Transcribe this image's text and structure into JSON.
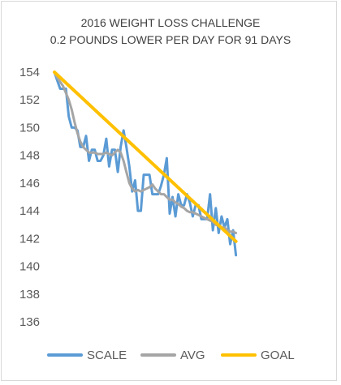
{
  "chart_data": {
    "type": "line",
    "title_lines": [
      "2016 WEIGHT LOSS CHALLENGE",
      "0.2 POUNDS LOWER PER DAY FOR 91 DAYS"
    ],
    "ylim": [
      136,
      154
    ],
    "yticks": [
      136,
      138,
      140,
      142,
      144,
      146,
      148,
      150,
      152,
      154
    ],
    "xlim": [
      0,
      91
    ],
    "grid": false,
    "legend_position": "bottom",
    "series": [
      {
        "name": "SCALE",
        "color": "#5b9bd5",
        "points": [
          [
            0,
            154
          ],
          [
            1,
            153.4
          ],
          [
            2,
            152.8
          ],
          [
            3,
            152.8
          ],
          [
            4,
            152.8
          ],
          [
            5,
            150.8
          ],
          [
            6,
            150
          ],
          [
            7,
            150
          ],
          [
            8,
            149.8
          ],
          [
            9,
            148.6
          ],
          [
            10,
            148.6
          ],
          [
            11,
            149.4
          ],
          [
            12,
            147.6
          ],
          [
            13,
            148.4
          ],
          [
            14,
            148.4
          ],
          [
            15,
            147.6
          ],
          [
            16,
            147.6
          ],
          [
            17,
            148
          ],
          [
            18,
            149.2
          ],
          [
            19,
            147.2
          ],
          [
            20,
            148.4
          ],
          [
            21,
            148.4
          ],
          [
            22,
            146.8
          ],
          [
            23,
            148.6
          ],
          [
            24,
            149.8
          ],
          [
            25,
            148.6
          ],
          [
            26,
            147.2
          ],
          [
            27,
            145.4
          ],
          [
            28,
            146.2
          ],
          [
            29,
            144
          ],
          [
            30,
            144
          ],
          [
            31,
            146.6
          ],
          [
            32,
            146.6
          ],
          [
            33,
            146.6
          ],
          [
            34,
            145.2
          ],
          [
            35,
            145.2
          ],
          [
            36,
            145.2
          ],
          [
            37,
            145.8
          ],
          [
            38,
            146.6
          ],
          [
            39,
            147.8
          ],
          [
            40,
            143.8
          ],
          [
            41,
            145
          ],
          [
            42,
            143.6
          ],
          [
            43,
            145.2
          ],
          [
            44,
            144.4
          ],
          [
            45,
            144.4
          ],
          [
            46,
            145.2
          ],
          [
            47,
            144.6
          ],
          [
            48,
            143.6
          ],
          [
            49,
            144.4
          ],
          [
            50,
            144.4
          ],
          [
            51,
            143.4
          ],
          [
            52,
            143.4
          ],
          [
            53,
            143.4
          ],
          [
            54,
            145.2
          ],
          [
            55,
            142.6
          ],
          [
            56,
            144.2
          ],
          [
            57,
            142.4
          ],
          [
            58,
            143.6
          ],
          [
            59,
            142.8
          ],
          [
            60,
            143.4
          ],
          [
            61,
            141.6
          ],
          [
            62,
            142.6
          ],
          [
            63,
            140.8
          ]
        ]
      },
      {
        "name": "AVG",
        "color": "#a5a5a5",
        "points": [
          [
            0,
            154
          ],
          [
            1,
            153.6
          ],
          [
            2,
            153.3
          ],
          [
            3,
            153
          ],
          [
            4,
            152.5
          ],
          [
            5,
            152
          ],
          [
            6,
            151.3
          ],
          [
            7,
            150.4
          ],
          [
            8,
            149.6
          ],
          [
            9,
            149
          ],
          [
            10,
            148.6
          ],
          [
            11,
            148.4
          ],
          [
            12,
            148.2
          ],
          [
            13,
            148.2
          ],
          [
            14,
            148.2
          ],
          [
            15,
            148.1
          ],
          [
            16,
            148.1
          ],
          [
            17,
            148.1
          ],
          [
            18,
            148.2
          ],
          [
            19,
            148.1
          ],
          [
            20,
            148
          ],
          [
            21,
            148.2
          ],
          [
            22,
            148.4
          ],
          [
            23,
            148.2
          ],
          [
            24,
            147.6
          ],
          [
            25,
            146.8
          ],
          [
            26,
            146
          ],
          [
            27,
            145.6
          ],
          [
            28,
            145.4
          ],
          [
            29,
            145.5
          ],
          [
            30,
            145.4
          ],
          [
            31,
            145.5
          ],
          [
            32,
            145.6
          ],
          [
            33,
            145.7
          ],
          [
            34,
            145.9
          ],
          [
            35,
            145.6
          ],
          [
            36,
            145.4
          ],
          [
            37,
            145.2
          ],
          [
            38,
            145.2
          ],
          [
            39,
            145
          ],
          [
            40,
            144.8
          ],
          [
            41,
            144.8
          ],
          [
            42,
            144.6
          ],
          [
            43,
            144.5
          ],
          [
            44,
            144.3
          ],
          [
            45,
            144.2
          ],
          [
            46,
            144
          ],
          [
            47,
            143.9
          ],
          [
            48,
            143.9
          ],
          [
            49,
            143.8
          ],
          [
            50,
            143.7
          ],
          [
            51,
            143.6
          ],
          [
            52,
            143.5
          ],
          [
            53,
            143.4
          ],
          [
            54,
            143.3
          ],
          [
            55,
            143.2
          ],
          [
            56,
            143
          ],
          [
            57,
            142.9
          ],
          [
            58,
            142.8
          ],
          [
            59,
            142.8
          ],
          [
            60,
            142.6
          ],
          [
            61,
            142.5
          ],
          [
            62,
            142.5
          ],
          [
            63,
            142.4
          ]
        ]
      },
      {
        "name": "GOAL",
        "color": "#ffc000",
        "points": [
          [
            0,
            154
          ],
          [
            63,
            141.8
          ]
        ]
      }
    ]
  }
}
